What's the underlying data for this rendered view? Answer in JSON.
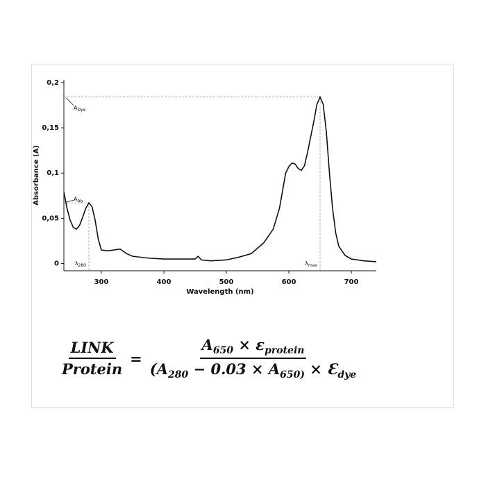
{
  "chart_data": {
    "type": "line",
    "xlabel": "Wavelength (nm)",
    "ylabel": "Absorbance (A)",
    "x": [
      240,
      245,
      250,
      255,
      260,
      265,
      270,
      275,
      280,
      285,
      290,
      295,
      300,
      310,
      320,
      330,
      340,
      350,
      375,
      400,
      425,
      450,
      455,
      460,
      475,
      500,
      520,
      540,
      560,
      575,
      585,
      595,
      600,
      605,
      610,
      615,
      620,
      625,
      630,
      640,
      645,
      650,
      655,
      660,
      665,
      670,
      675,
      680,
      690,
      700,
      720,
      740
    ],
    "series": [
      {
        "color": "#111111",
        "values": [
          0.079,
          0.061,
          0.048,
          0.04,
          0.038,
          0.042,
          0.051,
          0.061,
          0.067,
          0.063,
          0.048,
          0.027,
          0.015,
          0.014,
          0.015,
          0.016,
          0.011,
          0.008,
          0.006,
          0.005,
          0.005,
          0.005,
          0.008,
          0.004,
          0.003,
          0.004,
          0.007,
          0.011,
          0.023,
          0.038,
          0.061,
          0.1,
          0.107,
          0.111,
          0.11,
          0.105,
          0.103,
          0.108,
          0.123,
          0.157,
          0.176,
          0.184,
          0.176,
          0.146,
          0.1,
          0.061,
          0.034,
          0.019,
          0.009,
          0.005,
          0.003,
          0.002
        ]
      }
    ],
    "xlim": [
      240,
      740
    ],
    "ylim": [
      -0.008,
      0.203
    ],
    "xticks": [
      300,
      400,
      500,
      600,
      700
    ],
    "yticks": [
      0,
      {
        "value": 0.05,
        "label": "0,05"
      },
      {
        "value": 0.1,
        "label": "0,1"
      },
      {
        "value": 0.15,
        "label": "0,15"
      },
      {
        "value": 0.2,
        "label": "0,2"
      }
    ],
    "reference_points": [
      {
        "x": 650,
        "y": 0.184,
        "y_label": {
          "text": "A",
          "sub": "Dye"
        },
        "x_label": {
          "text": "λ",
          "sub": "max"
        }
      },
      {
        "x": 280,
        "y": 0.067,
        "y_label": {
          "text": "A",
          "sub": "Ab"
        },
        "x_label": {
          "text": "λ",
          "sub": "280"
        }
      }
    ]
  },
  "formula": {
    "left_num": "LINK",
    "left_den": "Protein",
    "equals": "=",
    "right_num": [
      {
        "text": "A"
      },
      {
        "sub": "650"
      },
      {
        "text": " × ε"
      },
      {
        "sub": "protein"
      }
    ],
    "right_den": [
      {
        "text": "(A"
      },
      {
        "sub": "280"
      },
      {
        "text": " − 0.03 × A"
      },
      {
        "sub": "650)"
      },
      {
        "text": " × Ɛ"
      },
      {
        "sub": "dye"
      }
    ]
  }
}
